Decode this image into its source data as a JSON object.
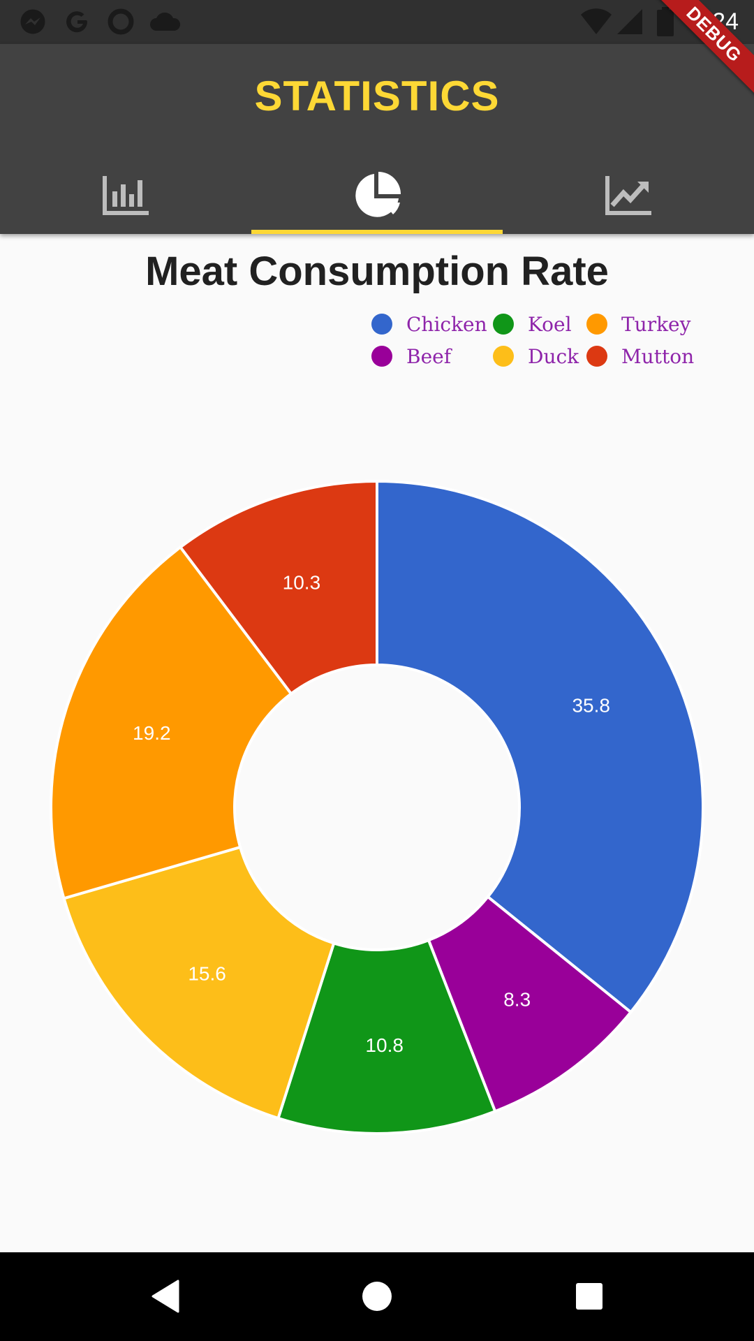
{
  "status_bar": {
    "time": "7:24",
    "icons": [
      "messenger-icon",
      "google-icon",
      "circle-notification-icon",
      "cloud-icon",
      "wifi-icon",
      "signal-icon",
      "battery-icon"
    ]
  },
  "debug_banner": "DEBUG",
  "app_bar": {
    "title": "STATISTICS",
    "title_color": "#fdd835",
    "indicator_color": "#fdd835",
    "tabs": [
      {
        "icon": "bar-chart-icon",
        "selected": false
      },
      {
        "icon": "pie-chart-icon",
        "selected": true
      },
      {
        "icon": "line-chart-icon",
        "selected": false
      }
    ]
  },
  "chart_data": {
    "type": "pie",
    "style": "donut",
    "title": "Meat Consumption Rate",
    "legend_position": "top-right",
    "slices": [
      {
        "label": "Chicken",
        "value": 35.8,
        "color": "#3366cc"
      },
      {
        "label": "Beef",
        "value": 8.3,
        "color": "#990099"
      },
      {
        "label": "Koel",
        "value": 10.8,
        "color": "#109618"
      },
      {
        "label": "Duck",
        "value": 15.6,
        "color": "#fdbe19"
      },
      {
        "label": "Turkey",
        "value": 19.2,
        "color": "#ff9900"
      },
      {
        "label": "Mutton",
        "value": 10.3,
        "color": "#dc3912"
      }
    ],
    "legend": [
      "Chicken",
      "Koel",
      "Turkey",
      "Beef",
      "Duck",
      "Mutton"
    ]
  },
  "nav_bar": {
    "buttons": [
      "back-icon",
      "home-icon",
      "recents-icon"
    ]
  }
}
